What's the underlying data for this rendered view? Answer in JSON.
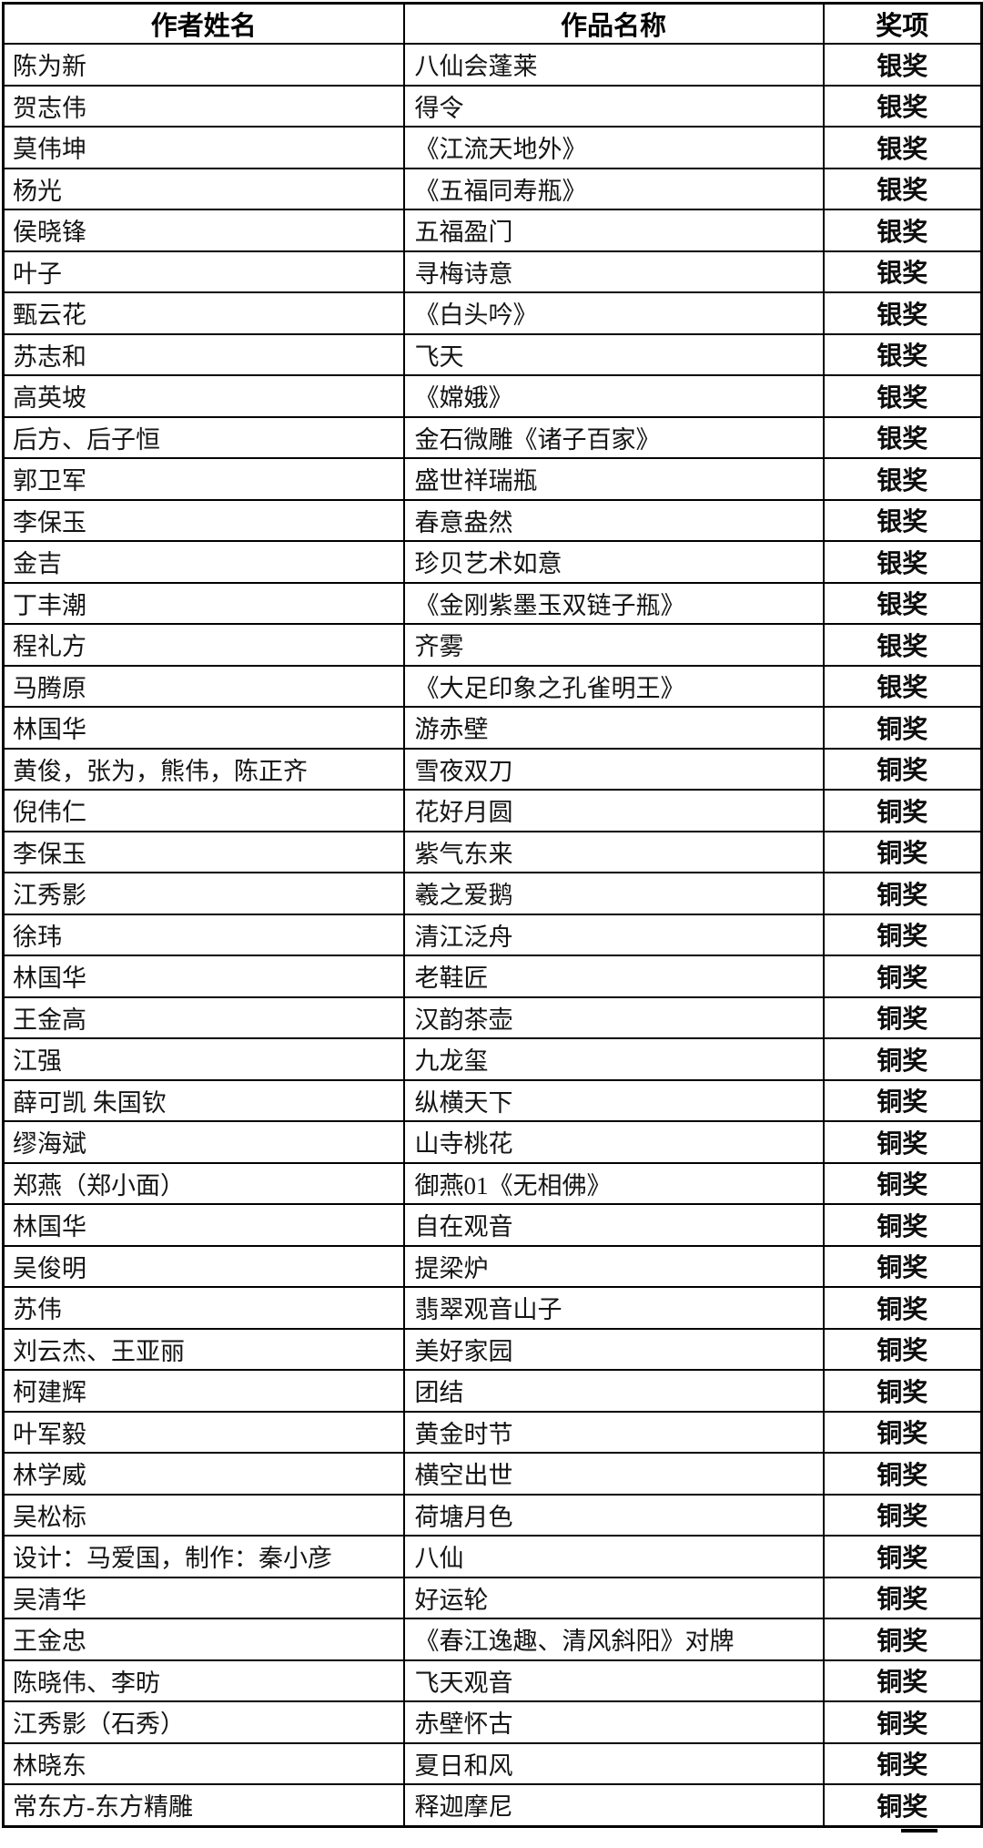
{
  "table": {
    "columns": [
      {
        "label": "作者姓名"
      },
      {
        "label": "作品名称"
      },
      {
        "label": "奖项"
      }
    ],
    "rows": [
      {
        "author": "陈为新",
        "work": "八仙会蓬莱",
        "award": "银奖"
      },
      {
        "author": "贺志伟",
        "work": "得令",
        "award": "银奖"
      },
      {
        "author": "莫伟坤",
        "work": "《江流天地外》",
        "award": "银奖"
      },
      {
        "author": "杨光",
        "work": "《五福同寿瓶》",
        "award": "银奖"
      },
      {
        "author": "侯晓锋",
        "work": "五福盈门",
        "award": "银奖"
      },
      {
        "author": "叶子",
        "work": "寻梅诗意",
        "award": "银奖"
      },
      {
        "author": "甄云花",
        "work": "《白头吟》",
        "award": "银奖"
      },
      {
        "author": "苏志和",
        "work": "飞天",
        "award": "银奖"
      },
      {
        "author": "高英坡",
        "work": "《嫦娥》",
        "award": "银奖"
      },
      {
        "author": "后方、后子恒",
        "work": "金石微雕《诸子百家》",
        "award": "银奖"
      },
      {
        "author": "郭卫军",
        "work": "盛世祥瑞瓶",
        "award": "银奖"
      },
      {
        "author": "李保玉",
        "work": "春意盎然",
        "award": "银奖"
      },
      {
        "author": "金吉",
        "work": "珍贝艺术如意",
        "award": "银奖"
      },
      {
        "author": "丁丰潮",
        "work": "《金刚紫墨玉双链子瓶》",
        "award": "银奖"
      },
      {
        "author": "程礼方",
        "work": "齐雾",
        "award": "银奖"
      },
      {
        "author": "马腾原",
        "work": "《大足印象之孔雀明王》",
        "award": "银奖"
      },
      {
        "author": "林国华",
        "work": "游赤壁",
        "award": "铜奖"
      },
      {
        "author": "黄俊，张为，熊伟，陈正齐",
        "work": "雪夜双刀",
        "award": "铜奖"
      },
      {
        "author": "倪伟仁",
        "work": "花好月圆",
        "award": "铜奖"
      },
      {
        "author": "李保玉",
        "work": "紫气东来",
        "award": "铜奖"
      },
      {
        "author": "江秀影",
        "work": "羲之爱鹅",
        "award": "铜奖"
      },
      {
        "author": "徐玮",
        "work": "清江泛舟",
        "award": "铜奖"
      },
      {
        "author": "林国华",
        "work": "老鞋匠",
        "award": "铜奖"
      },
      {
        "author": "王金高",
        "work": "汉韵茶壶",
        "award": "铜奖"
      },
      {
        "author": "江强",
        "work": "九龙玺",
        "award": "铜奖"
      },
      {
        "author": "薛可凯 朱国钦",
        "work": "纵横天下",
        "award": "铜奖"
      },
      {
        "author": "缪海斌",
        "work": "山寺桃花",
        "award": "铜奖"
      },
      {
        "author": "郑燕（郑小面）",
        "work": "御燕01《无相佛》",
        "award": "铜奖"
      },
      {
        "author": "林国华",
        "work": "自在观音",
        "award": "铜奖"
      },
      {
        "author": "吴俊明",
        "work": "提梁炉",
        "award": "铜奖"
      },
      {
        "author": "苏伟",
        "work": "翡翠观音山子",
        "award": "铜奖"
      },
      {
        "author": "刘云杰、王亚丽",
        "work": "美好家园",
        "award": "铜奖"
      },
      {
        "author": "柯建辉",
        "work": "团结",
        "award": "铜奖"
      },
      {
        "author": "叶军毅",
        "work": "黄金时节",
        "award": "铜奖"
      },
      {
        "author": "林学威",
        "work": "横空出世",
        "award": "铜奖"
      },
      {
        "author": "吴松标",
        "work": "荷塘月色",
        "award": "铜奖"
      },
      {
        "author": "设计：马爱国，制作：秦小彦",
        "work": "八仙",
        "award": "铜奖"
      },
      {
        "author": "吴清华",
        "work": "好运轮",
        "award": "铜奖"
      },
      {
        "author": "王金忠",
        "work": "《春江逸趣、清风斜阳》对牌",
        "award": "铜奖"
      },
      {
        "author": "陈晓伟、李昉",
        "work": "飞天观音",
        "award": "铜奖"
      },
      {
        "author": "江秀影（石秀）",
        "work": "赤壁怀古",
        "award": "铜奖"
      },
      {
        "author": "林晓东",
        "work": "夏日和风",
        "award": "铜奖"
      },
      {
        "author": "常东方-东方精雕",
        "work": "释迦摩尼",
        "award": "铜奖"
      }
    ]
  },
  "colors": {
    "border": "#000000",
    "text": "#141414",
    "background": "#ffffff"
  }
}
